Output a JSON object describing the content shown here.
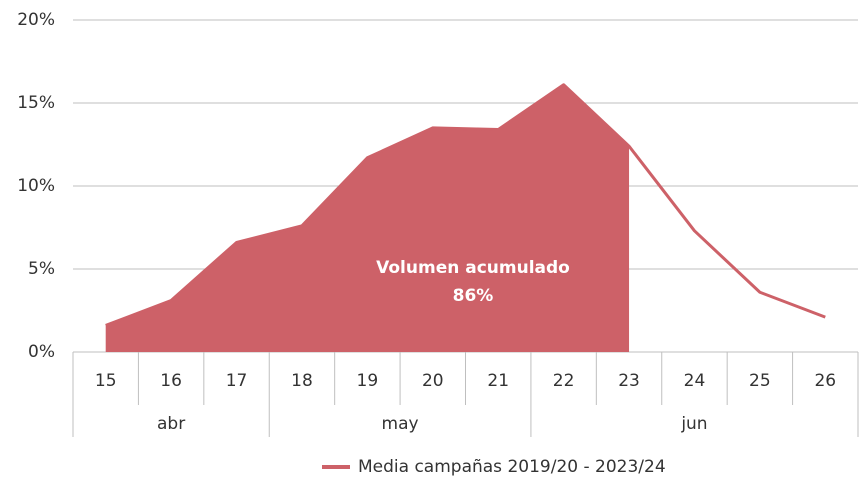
{
  "chart_data": {
    "type": "line",
    "groups": [
      {
        "name": "abr",
        "categories": [
          "15",
          "16",
          "17"
        ]
      },
      {
        "name": "may",
        "categories": [
          "18",
          "19",
          "20",
          "21"
        ]
      },
      {
        "name": "jun",
        "categories": [
          "22",
          "23",
          "24",
          "25",
          "26"
        ]
      }
    ],
    "series": [
      {
        "name": "Media campañas 2019/20 - 2023/24",
        "color": "#cd6168",
        "values": [
          1.6,
          3.1,
          6.6,
          7.6,
          11.7,
          13.5,
          13.4,
          16.1,
          12.4,
          7.3,
          3.6,
          2.1
        ]
      }
    ],
    "area_through": "23",
    "annotation": [
      "Volumen acumulado",
      "86%"
    ],
    "ylim": [
      0,
      20
    ],
    "yticks": [
      {
        "value": 0,
        "label": "0%"
      },
      {
        "value": 5,
        "label": "5%"
      },
      {
        "value": 10,
        "label": "10%"
      },
      {
        "value": 15,
        "label": "15%"
      },
      {
        "value": 20,
        "label": "20%"
      }
    ],
    "grid": true,
    "legend": "bottom"
  }
}
